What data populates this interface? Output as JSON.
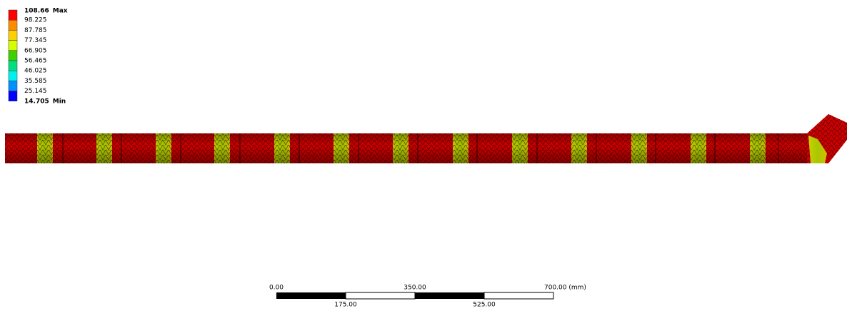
{
  "legend": {
    "entries": [
      {
        "value": "108.66",
        "tag": "Max"
      },
      {
        "value": "98.225"
      },
      {
        "value": "87.785"
      },
      {
        "value": "77.345"
      },
      {
        "value": "66.905"
      },
      {
        "value": "56.465"
      },
      {
        "value": "46.025"
      },
      {
        "value": "35.585"
      },
      {
        "value": "25.145"
      },
      {
        "value": "14.705",
        "tag": "Min"
      }
    ]
  },
  "scale_bar": {
    "top_labels": [
      "0.00",
      "350.00",
      "700.00 (mm)"
    ],
    "bottom_labels": [
      "175.00",
      "525.00"
    ]
  }
}
